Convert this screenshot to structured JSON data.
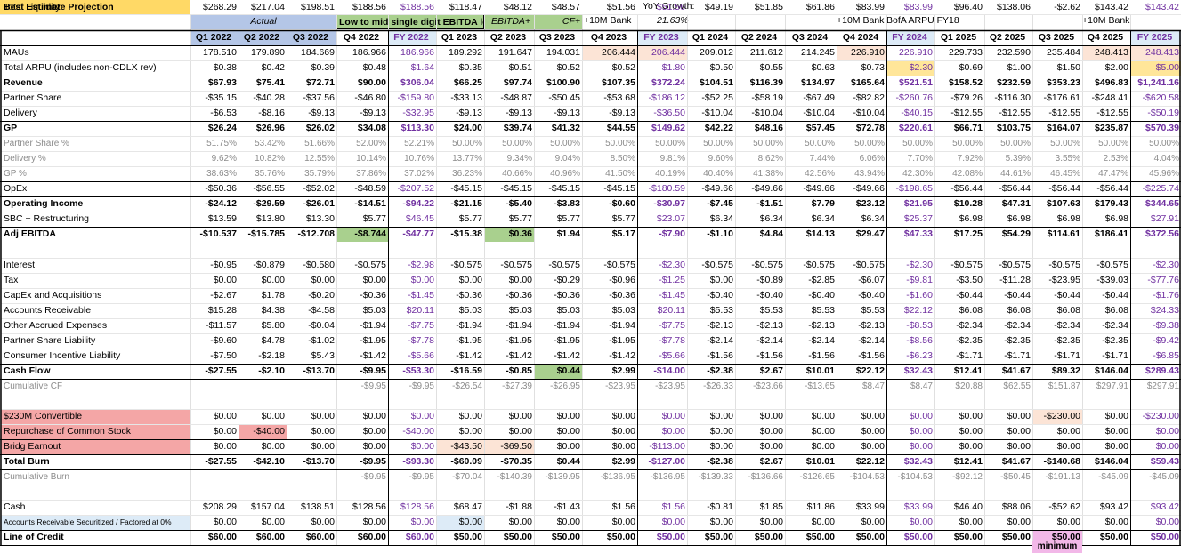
{
  "header": {
    "title": "Best Estimate Projection",
    "yoy_label": "YoY Growth:",
    "yoy_value": "21.63%",
    "actual_label": "Actual",
    "q4_2022_note": "Low to mid single digit EBITDA lo",
    "ebitda_plus": "EBITDA+",
    "cf_plus": "CF+",
    "bank_2023": "+10M Bank",
    "bank_2024": "+10M Bank",
    "bofa": "BofA ARPU FY18",
    "bank_2025": "+10M Bank",
    "minimum_label": "minimum"
  },
  "colors": {
    "title_bg": "#ffd966",
    "actual_bg": "#b4c6e7",
    "green_bg": "#a9d08e",
    "peach_bg": "#fce4d6",
    "fy_bg": "#ffe699",
    "red_bg": "#f4a6a6",
    "pink_bg": "#f2b8e8",
    "purple": "#7030a0",
    "lightblue_bg": "#ddebf7",
    "grey_text": "#8c8c8c"
  },
  "columns": [
    "Q1 2022",
    "Q2 2022",
    "Q3 2022",
    "Q4 2022",
    "FY 2022",
    "Q1 2023",
    "Q2 2023",
    "Q3 2023",
    "Q4 2023",
    "FY 2023",
    "Q1 2024",
    "Q2 2024",
    "Q3 2024",
    "Q4 2024",
    "FY 2024",
    "Q1 2025",
    "Q2 2025",
    "Q3 2025",
    "Q4 2025",
    "FY 2025"
  ],
  "rows": [
    {
      "label": "MAUs",
      "values": [
        "178.510",
        "179.890",
        "184.669",
        "186.966",
        "186.966",
        "189.292",
        "191.647",
        "194.031",
        "206.444",
        "206.444",
        "209.012",
        "211.612",
        "214.245",
        "226.910",
        "226.910",
        "229.733",
        "232.590",
        "235.484",
        "248.413",
        "248.413"
      ]
    },
    {
      "label": "Total ARPU (includes non-CDLX rev)",
      "values": [
        "$0.38",
        "$0.42",
        "$0.39",
        "$0.48",
        "$1.64",
        "$0.35",
        "$0.51",
        "$0.52",
        "$0.52",
        "$1.80",
        "$0.50",
        "$0.55",
        "$0.63",
        "$0.73",
        "$2.30",
        "$0.69",
        "$1.00",
        "$1.50",
        "$2.00",
        "$5.00"
      ]
    },
    {
      "label": "Revenue",
      "values": [
        "$67.93",
        "$75.41",
        "$72.71",
        "$90.00",
        "$306.04",
        "$66.25",
        "$97.74",
        "$100.90",
        "$107.35",
        "$372.24",
        "$104.51",
        "$116.39",
        "$134.97",
        "$165.64",
        "$521.51",
        "$158.52",
        "$232.59",
        "$353.23",
        "$496.83",
        "$1,241.16"
      ]
    },
    {
      "label": "Partner Share",
      "values": [
        "-$35.15",
        "-$40.28",
        "-$37.56",
        "-$46.80",
        "-$159.80",
        "-$33.13",
        "-$48.87",
        "-$50.45",
        "-$53.68",
        "-$186.12",
        "-$52.25",
        "-$58.19",
        "-$67.49",
        "-$82.82",
        "-$260.76",
        "-$79.26",
        "-$116.30",
        "-$176.61",
        "-$248.41",
        "-$620.58"
      ]
    },
    {
      "label": "Delivery",
      "values": [
        "-$6.53",
        "-$8.16",
        "-$9.13",
        "-$9.13",
        "-$32.95",
        "-$9.13",
        "-$9.13",
        "-$9.13",
        "-$9.13",
        "-$36.50",
        "-$10.04",
        "-$10.04",
        "-$10.04",
        "-$10.04",
        "-$40.15",
        "-$12.55",
        "-$12.55",
        "-$12.55",
        "-$12.55",
        "-$50.19"
      ]
    },
    {
      "label": "GP",
      "values": [
        "$26.24",
        "$26.96",
        "$26.02",
        "$34.08",
        "$113.30",
        "$24.00",
        "$39.74",
        "$41.32",
        "$44.55",
        "$149.62",
        "$42.22",
        "$48.16",
        "$57.45",
        "$72.78",
        "$220.61",
        "$66.71",
        "$103.75",
        "$164.07",
        "$235.87",
        "$570.39"
      ]
    },
    {
      "label": "Partner Share %",
      "values": [
        "51.75%",
        "53.42%",
        "51.66%",
        "52.00%",
        "52.21%",
        "50.00%",
        "50.00%",
        "50.00%",
        "50.00%",
        "50.00%",
        "50.00%",
        "50.00%",
        "50.00%",
        "50.00%",
        "50.00%",
        "50.00%",
        "50.00%",
        "50.00%",
        "50.00%",
        "50.00%"
      ]
    },
    {
      "label": "Delivery %",
      "values": [
        "9.62%",
        "10.82%",
        "12.55%",
        "10.14%",
        "10.76%",
        "13.77%",
        "9.34%",
        "9.04%",
        "8.50%",
        "9.81%",
        "9.60%",
        "8.62%",
        "7.44%",
        "6.06%",
        "7.70%",
        "7.92%",
        "5.39%",
        "3.55%",
        "2.53%",
        "4.04%"
      ]
    },
    {
      "label": "GP %",
      "values": [
        "38.63%",
        "35.76%",
        "35.79%",
        "37.86%",
        "37.02%",
        "36.23%",
        "40.66%",
        "40.96%",
        "41.50%",
        "40.19%",
        "40.40%",
        "41.38%",
        "42.56%",
        "43.94%",
        "42.30%",
        "42.08%",
        "44.61%",
        "46.45%",
        "47.47%",
        "45.96%"
      ]
    },
    {
      "label": "OpEx",
      "values": [
        "-$50.36",
        "-$56.55",
        "-$52.02",
        "-$48.59",
        "-$207.52",
        "-$45.15",
        "-$45.15",
        "-$45.15",
        "-$45.15",
        "-$180.59",
        "-$49.66",
        "-$49.66",
        "-$49.66",
        "-$49.66",
        "-$198.65",
        "-$56.44",
        "-$56.44",
        "-$56.44",
        "-$56.44",
        "-$225.74"
      ]
    },
    {
      "label": "Operating Income",
      "values": [
        "-$24.12",
        "-$29.59",
        "-$26.01",
        "-$14.51",
        "-$94.22",
        "-$21.15",
        "-$5.40",
        "-$3.83",
        "-$0.60",
        "-$30.97",
        "-$7.45",
        "-$1.51",
        "$7.79",
        "$23.12",
        "$21.95",
        "$10.28",
        "$47.31",
        "$107.63",
        "$179.43",
        "$344.65"
      ]
    },
    {
      "label": "SBC + Restructuring",
      "values": [
        "$13.59",
        "$13.80",
        "$13.30",
        "$5.77",
        "$46.45",
        "$5.77",
        "$5.77",
        "$5.77",
        "$5.77",
        "$23.07",
        "$6.34",
        "$6.34",
        "$6.34",
        "$6.34",
        "$25.37",
        "$6.98",
        "$6.98",
        "$6.98",
        "$6.98",
        "$27.91"
      ]
    },
    {
      "label": "Adj EBITDA",
      "values": [
        "-$10.537",
        "-$15.785",
        "-$12.708",
        "-$8.744",
        "-$47.77",
        "-$15.38",
        "$0.36",
        "$1.94",
        "$5.17",
        "-$7.90",
        "-$1.10",
        "$4.84",
        "$14.13",
        "$29.47",
        "$47.33",
        "$17.25",
        "$54.29",
        "$114.61",
        "$186.41",
        "$372.56"
      ]
    },
    {
      "label": "Interest",
      "values": [
        "-$0.95",
        "-$0.879",
        "-$0.580",
        "-$0.575",
        "-$2.98",
        "-$0.575",
        "-$0.575",
        "-$0.575",
        "-$0.575",
        "-$2.30",
        "-$0.575",
        "-$0.575",
        "-$0.575",
        "-$0.575",
        "-$2.30",
        "-$0.575",
        "-$0.575",
        "-$0.575",
        "-$0.575",
        "-$2.30"
      ]
    },
    {
      "label": "Tax",
      "values": [
        "$0.00",
        "$0.00",
        "$0.00",
        "$0.00",
        "$0.00",
        "$0.00",
        "$0.00",
        "-$0.29",
        "-$0.96",
        "-$1.25",
        "$0.00",
        "-$0.89",
        "-$2.85",
        "-$6.07",
        "-$9.81",
        "-$3.50",
        "-$11.28",
        "-$23.95",
        "-$39.03",
        "-$77.76"
      ]
    },
    {
      "label": "CapEx and Acquisitions",
      "values": [
        "-$2.67",
        "$1.78",
        "-$0.20",
        "-$0.36",
        "-$1.45",
        "-$0.36",
        "-$0.36",
        "-$0.36",
        "-$0.36",
        "-$1.45",
        "-$0.40",
        "-$0.40",
        "-$0.40",
        "-$0.40",
        "-$1.60",
        "-$0.44",
        "-$0.44",
        "-$0.44",
        "-$0.44",
        "-$1.76"
      ]
    },
    {
      "label": "Accounts Receivable",
      "values": [
        "$15.28",
        "$4.38",
        "-$4.58",
        "$5.03",
        "$20.11",
        "$5.03",
        "$5.03",
        "$5.03",
        "$5.03",
        "$20.11",
        "$5.53",
        "$5.53",
        "$5.53",
        "$5.53",
        "$22.12",
        "$6.08",
        "$6.08",
        "$6.08",
        "$6.08",
        "$24.33"
      ]
    },
    {
      "label": "Other Accrued Expenses",
      "values": [
        "-$11.57",
        "$5.80",
        "-$0.04",
        "-$1.94",
        "-$7.75",
        "-$1.94",
        "-$1.94",
        "-$1.94",
        "-$1.94",
        "-$7.75",
        "-$2.13",
        "-$2.13",
        "-$2.13",
        "-$2.13",
        "-$8.53",
        "-$2.34",
        "-$2.34",
        "-$2.34",
        "-$2.34",
        "-$9.38"
      ]
    },
    {
      "label": "Partner Share Liability",
      "values": [
        "-$9.60",
        "$4.78",
        "-$1.02",
        "-$1.95",
        "-$7.78",
        "-$1.95",
        "-$1.95",
        "-$1.95",
        "-$1.95",
        "-$7.78",
        "-$2.14",
        "-$2.14",
        "-$2.14",
        "-$2.14",
        "-$8.56",
        "-$2.35",
        "-$2.35",
        "-$2.35",
        "-$2.35",
        "-$9.42"
      ]
    },
    {
      "label": "Consumer Incentive Liability",
      "values": [
        "-$7.50",
        "-$2.18",
        "$5.43",
        "-$1.42",
        "-$5.66",
        "-$1.42",
        "-$1.42",
        "-$1.42",
        "-$1.42",
        "-$5.66",
        "-$1.56",
        "-$1.56",
        "-$1.56",
        "-$1.56",
        "-$6.23",
        "-$1.71",
        "-$1.71",
        "-$1.71",
        "-$1.71",
        "-$6.85"
      ]
    },
    {
      "label": "Cash Flow",
      "values": [
        "-$27.55",
        "-$2.10",
        "-$13.70",
        "-$9.95",
        "-$53.30",
        "-$16.59",
        "-$0.85",
        "$0.44",
        "$2.99",
        "-$14.00",
        "-$2.38",
        "$2.67",
        "$10.01",
        "$22.12",
        "$32.43",
        "$12.41",
        "$41.67",
        "$89.32",
        "$146.04",
        "$289.43"
      ]
    },
    {
      "label": "Cumulative CF",
      "values": [
        "",
        "",
        "",
        "-$9.95",
        "-$9.95",
        "-$26.54",
        "-$27.39",
        "-$26.95",
        "-$23.95",
        "-$23.95",
        "-$26.33",
        "-$23.66",
        "-$13.65",
        "$8.47",
        "$8.47",
        "$20.88",
        "$62.55",
        "$151.87",
        "$297.91",
        "$297.91"
      ]
    },
    {
      "label": "$230M Convertible",
      "values": [
        "$0.00",
        "$0.00",
        "$0.00",
        "$0.00",
        "$0.00",
        "$0.00",
        "$0.00",
        "$0.00",
        "$0.00",
        "$0.00",
        "$0.00",
        "$0.00",
        "$0.00",
        "$0.00",
        "$0.00",
        "$0.00",
        "$0.00",
        "-$230.00",
        "$0.00",
        "-$230.00"
      ]
    },
    {
      "label": "Repurchase of Common Stock",
      "values": [
        "$0.00",
        "-$40.00",
        "$0.00",
        "$0.00",
        "-$40.00",
        "$0.00",
        "$0.00",
        "$0.00",
        "$0.00",
        "$0.00",
        "$0.00",
        "$0.00",
        "$0.00",
        "$0.00",
        "$0.00",
        "$0.00",
        "$0.00",
        "$0.00",
        "$0.00",
        "$0.00"
      ]
    },
    {
      "label": "Bridg Earnout",
      "values": [
        "$0.00",
        "$0.00",
        "$0.00",
        "$0.00",
        "$0.00",
        "-$43.50",
        "-$69.50",
        "$0.00",
        "$0.00",
        "-$113.00",
        "$0.00",
        "$0.00",
        "$0.00",
        "$0.00",
        "$0.00",
        "$0.00",
        "$0.00",
        "$0.00",
        "$0.00",
        "$0.00"
      ]
    },
    {
      "label": "Total Burn",
      "values": [
        "-$27.55",
        "-$42.10",
        "-$13.70",
        "-$9.95",
        "-$93.30",
        "-$60.09",
        "-$70.35",
        "$0.44",
        "$2.99",
        "-$127.00",
        "-$2.38",
        "$2.67",
        "$10.01",
        "$22.12",
        "$32.43",
        "$12.41",
        "$41.67",
        "-$140.68",
        "$146.04",
        "$59.43"
      ]
    },
    {
      "label": "Cumulative Burn",
      "values": [
        "",
        "",
        "",
        "-$9.95",
        "-$9.95",
        "-$70.04",
        "-$140.39",
        "-$139.95",
        "-$136.95",
        "-$136.95",
        "-$139.33",
        "-$136.66",
        "-$126.65",
        "-$104.53",
        "-$104.53",
        "-$92.12",
        "-$50.45",
        "-$191.13",
        "-$45.09",
        "-$45.09"
      ]
    },
    {
      "label": "Cash",
      "values": [
        "$208.29",
        "$157.04",
        "$138.51",
        "$128.56",
        "$128.56",
        "$68.47",
        "-$1.88",
        "-$1.43",
        "$1.56",
        "$1.56",
        "-$0.81",
        "$1.85",
        "$11.86",
        "$33.99",
        "$33.99",
        "$46.40",
        "$88.06",
        "-$52.62",
        "$93.42",
        "$93.42"
      ]
    },
    {
      "label": "Accounts Receivable Securitized / Factored at 0%",
      "values": [
        "$0.00",
        "$0.00",
        "$0.00",
        "$0.00",
        "$0.00",
        "$0.00",
        "$0.00",
        "$0.00",
        "$0.00",
        "$0.00",
        "$0.00",
        "$0.00",
        "$0.00",
        "$0.00",
        "$0.00",
        "$0.00",
        "$0.00",
        "$0.00",
        "$0.00",
        "$0.00"
      ]
    },
    {
      "label": "Line of Credit",
      "values": [
        "$60.00",
        "$60.00",
        "$60.00",
        "$60.00",
        "$60.00",
        "$50.00",
        "$50.00",
        "$50.00",
        "$50.00",
        "$50.00",
        "$50.00",
        "$50.00",
        "$50.00",
        "$50.00",
        "$50.00",
        "$50.00",
        "$50.00",
        "$50.00",
        "$50.00",
        "$50.00"
      ]
    },
    {
      "label": "Total Liquidity",
      "values": [
        "$268.29",
        "$217.04",
        "$198.51",
        "$188.56",
        "$188.56",
        "$118.47",
        "$48.12",
        "$48.57",
        "$51.56",
        "$51.56",
        "$49.19",
        "$51.85",
        "$61.86",
        "$83.99",
        "$83.99",
        "$96.40",
        "$138.06",
        "-$2.62",
        "$143.42",
        "$143.42"
      ]
    }
  ]
}
